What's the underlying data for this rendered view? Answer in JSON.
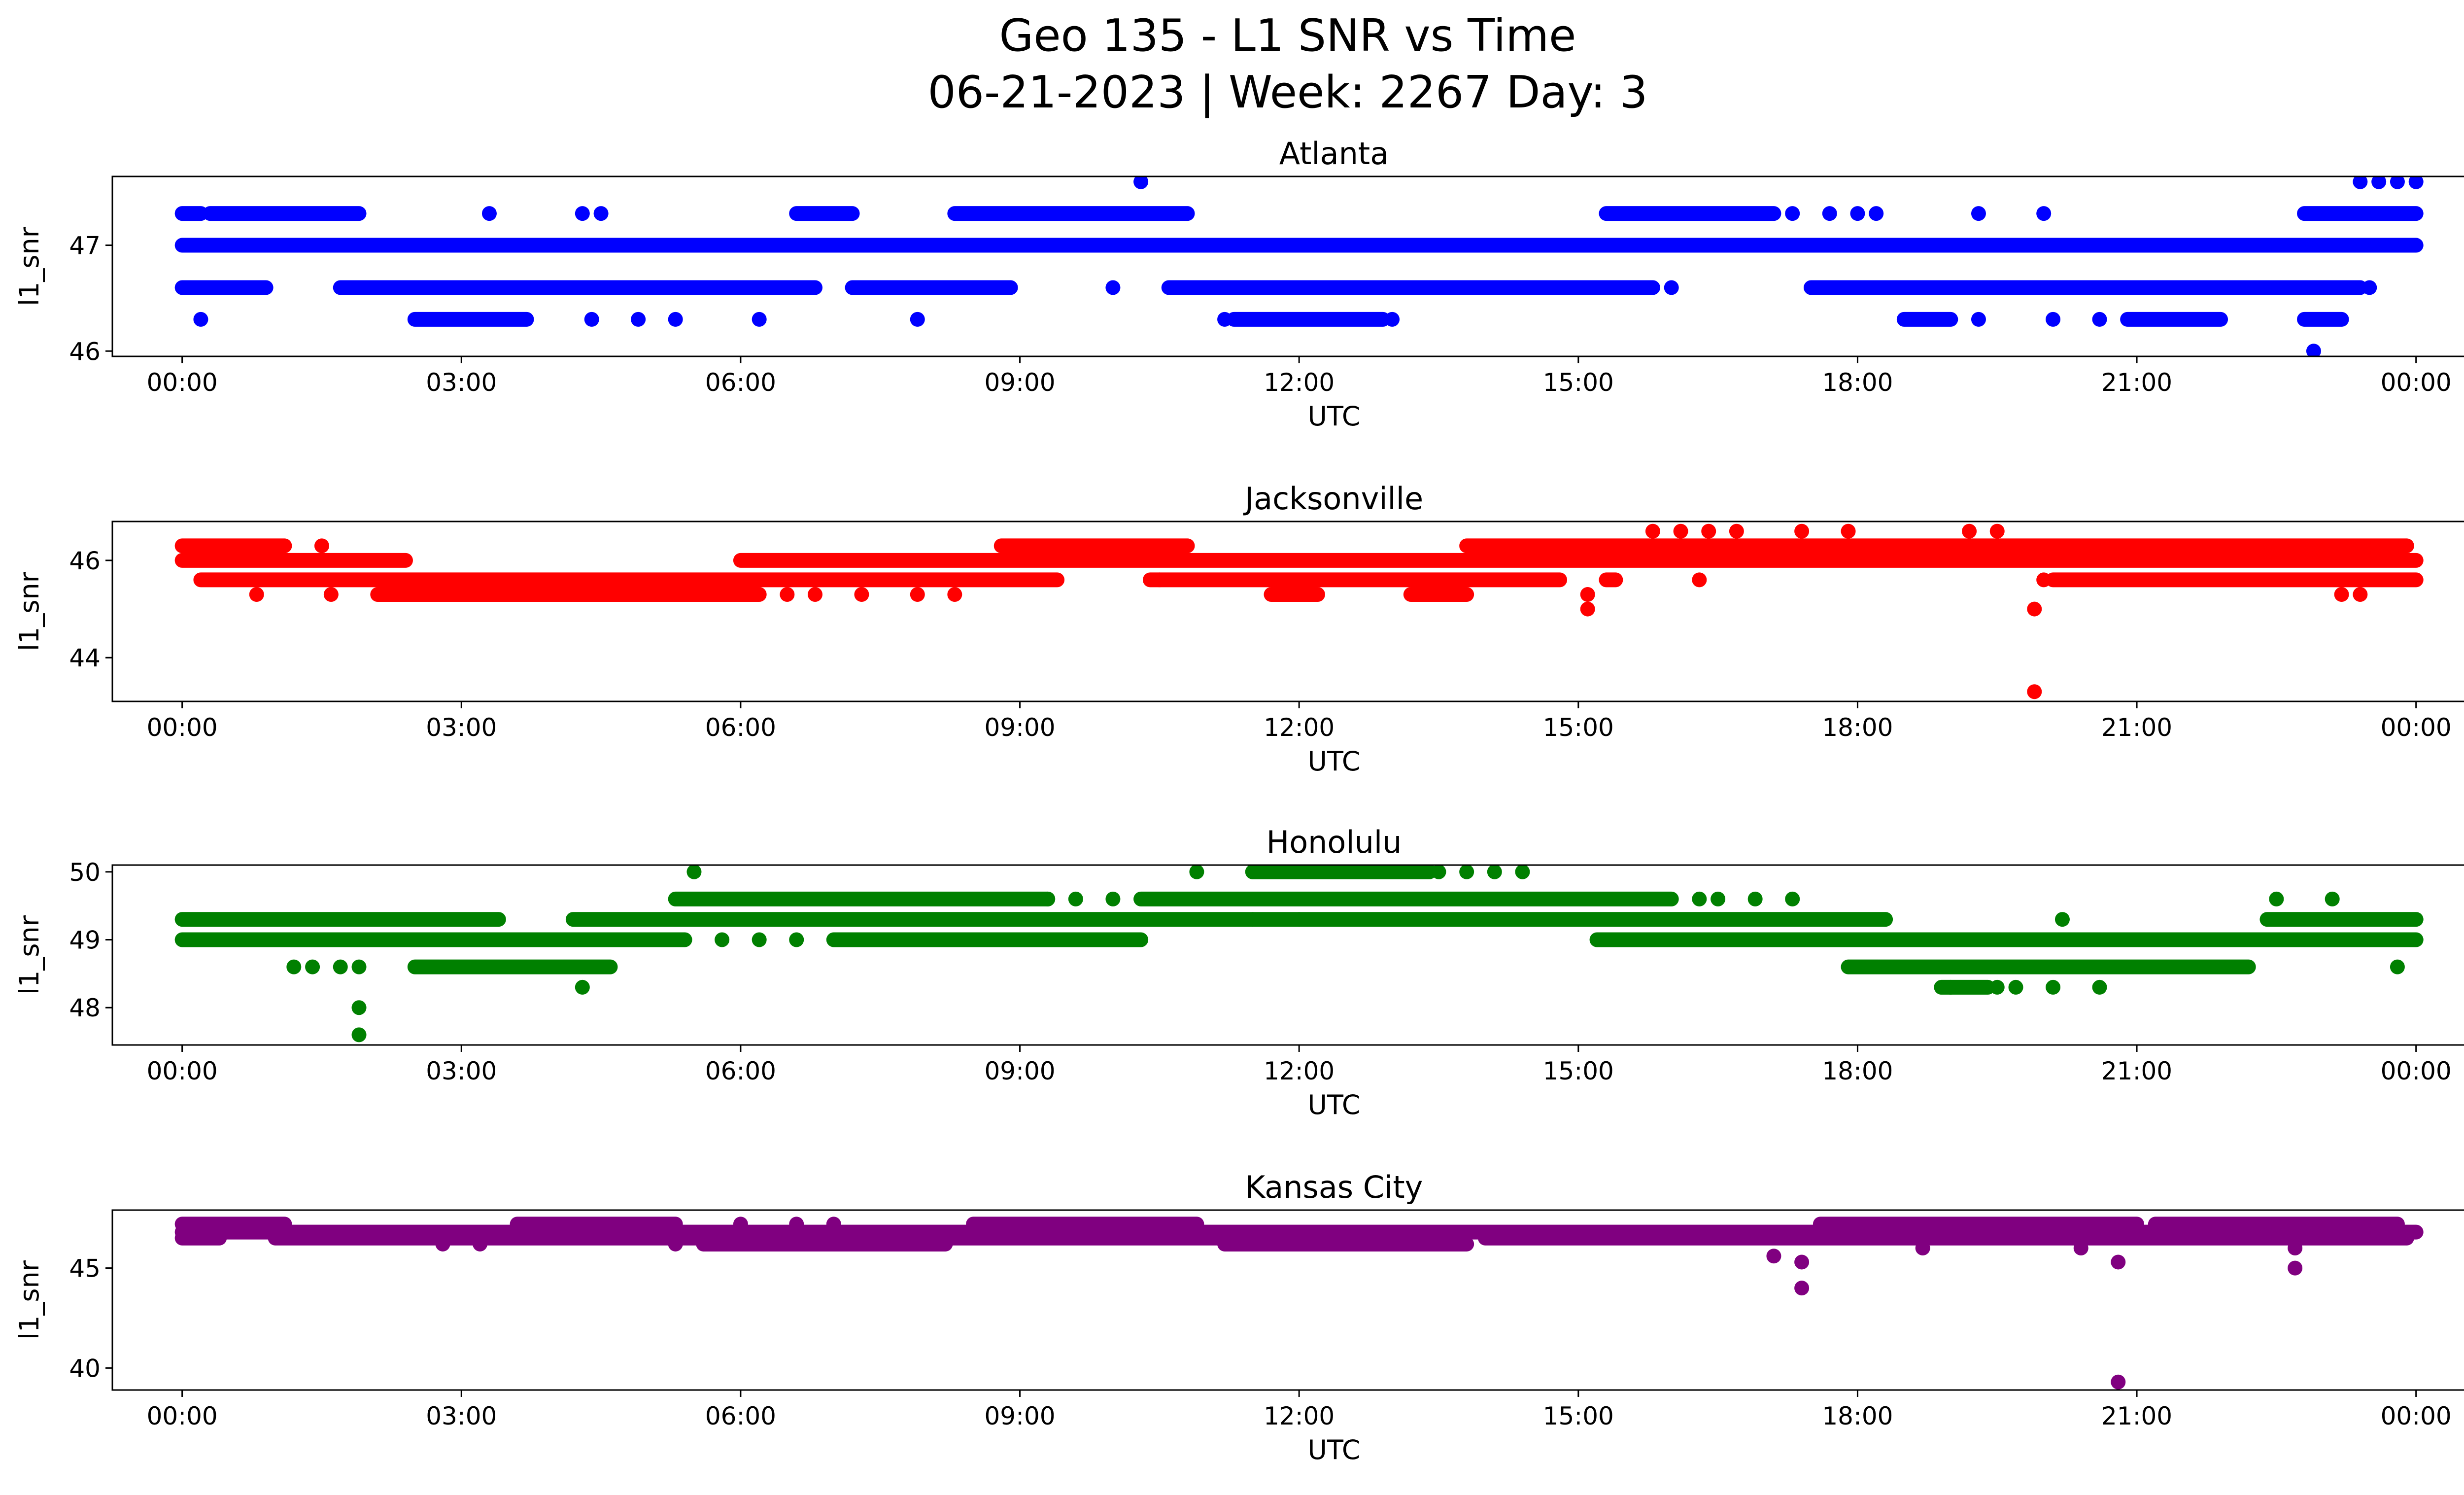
{
  "figure": {
    "title_line1": "Geo 135 - L1 SNR vs Time",
    "title_line2": "06-21-2023 | Week: 2267 Day: 3"
  },
  "chart_data": [
    {
      "type": "scatter",
      "title": "Atlanta",
      "color": "#0000ff",
      "xlabel": "UTC",
      "ylabel": "l1_snr",
      "xlim_hours": [
        -0.75,
        25.5
      ],
      "ylim": [
        45.95,
        47.65
      ],
      "x_ticks": [
        "00:00",
        "03:00",
        "06:00",
        "09:00",
        "12:00",
        "15:00",
        "18:00",
        "21:00",
        "00:00"
      ],
      "y_ticks": [
        46,
        47
      ],
      "levels": [
        {
          "y": 47.0,
          "segments": [
            [
              0.0,
              24.0
            ]
          ]
        },
        {
          "y": 46.6,
          "segments": [
            [
              0.0,
              0.9
            ],
            [
              1.7,
              6.8
            ],
            [
              7.2,
              8.9
            ],
            [
              10.6,
              15.8
            ],
            [
              17.5,
              23.4
            ]
          ]
        },
        {
          "y": 47.3,
          "segments": [
            [
              0.0,
              0.2
            ],
            [
              0.3,
              1.9
            ],
            [
              6.6,
              7.2
            ],
            [
              8.3,
              10.8
            ],
            [
              15.3,
              17.1
            ],
            [
              22.8,
              24.0
            ]
          ]
        },
        {
          "y": 46.3,
          "segments": [
            [
              2.5,
              3.7
            ],
            [
              11.3,
              12.9
            ],
            [
              18.5,
              19.0
            ],
            [
              20.9,
              21.9
            ],
            [
              22.8,
              23.2
            ]
          ]
        }
      ],
      "points": [
        [
          0.2,
          46.3
        ],
        [
          3.3,
          47.3
        ],
        [
          4.3,
          47.3
        ],
        [
          4.5,
          47.3
        ],
        [
          4.4,
          46.3
        ],
        [
          4.9,
          46.3
        ],
        [
          5.3,
          46.3
        ],
        [
          6.2,
          46.3
        ],
        [
          7.9,
          46.3
        ],
        [
          10.0,
          46.6
        ],
        [
          10.3,
          47.6
        ],
        [
          11.2,
          46.3
        ],
        [
          13.0,
          46.3
        ],
        [
          16.0,
          46.6
        ],
        [
          17.3,
          47.3
        ],
        [
          17.7,
          47.3
        ],
        [
          18.0,
          47.3
        ],
        [
          18.2,
          47.3
        ],
        [
          19.3,
          47.3
        ],
        [
          19.3,
          46.3
        ],
        [
          20.0,
          47.3
        ],
        [
          20.1,
          46.3
        ],
        [
          20.6,
          46.3
        ],
        [
          23.5,
          46.6
        ],
        [
          22.9,
          46.0
        ],
        [
          23.4,
          47.6
        ],
        [
          23.6,
          47.6
        ],
        [
          23.8,
          47.6
        ],
        [
          24.0,
          47.6
        ]
      ]
    },
    {
      "type": "scatter",
      "title": "Jacksonville",
      "color": "#ff0000",
      "xlabel": "UTC",
      "ylabel": "l1_snr",
      "xlim_hours": [
        -0.75,
        25.5
      ],
      "ylim": [
        43.1,
        46.8
      ],
      "x_ticks": [
        "00:00",
        "03:00",
        "06:00",
        "09:00",
        "12:00",
        "15:00",
        "18:00",
        "21:00",
        "00:00"
      ],
      "y_ticks": [
        44,
        46
      ],
      "levels": [
        {
          "y": 46.0,
          "segments": [
            [
              0.0,
              2.4
            ],
            [
              6.0,
              24.0
            ]
          ]
        },
        {
          "y": 45.6,
          "segments": [
            [
              0.2,
              9.4
            ],
            [
              10.4,
              14.8
            ],
            [
              15.3,
              15.4
            ],
            [
              20.1,
              24.0
            ]
          ]
        },
        {
          "y": 46.3,
          "segments": [
            [
              0.0,
              1.1
            ],
            [
              8.8,
              10.8
            ],
            [
              13.8,
              23.9
            ]
          ]
        },
        {
          "y": 45.3,
          "segments": [
            [
              2.1,
              6.2
            ],
            [
              11.7,
              12.2
            ],
            [
              13.2,
              13.8
            ]
          ]
        }
      ],
      "points": [
        [
          1.5,
          46.3
        ],
        [
          0.8,
          45.3
        ],
        [
          1.6,
          45.3
        ],
        [
          6.5,
          45.3
        ],
        [
          6.8,
          45.3
        ],
        [
          7.3,
          45.3
        ],
        [
          7.9,
          45.3
        ],
        [
          8.3,
          45.3
        ],
        [
          10.5,
          45.6
        ],
        [
          15.1,
          45.3
        ],
        [
          15.1,
          45.0
        ],
        [
          16.3,
          45.6
        ],
        [
          15.8,
          46.6
        ],
        [
          16.1,
          46.6
        ],
        [
          16.4,
          46.6
        ],
        [
          16.7,
          46.6
        ],
        [
          17.4,
          46.6
        ],
        [
          17.9,
          46.6
        ],
        [
          19.2,
          46.6
        ],
        [
          19.5,
          46.6
        ],
        [
          19.9,
          45.0
        ],
        [
          19.9,
          43.3
        ],
        [
          20.0,
          45.6
        ],
        [
          23.2,
          45.3
        ],
        [
          23.4,
          45.3
        ]
      ]
    },
    {
      "type": "scatter",
      "title": "Honolulu",
      "color": "#008000",
      "xlabel": "UTC",
      "ylabel": "l1_snr",
      "xlim_hours": [
        -0.75,
        25.5
      ],
      "ylim": [
        47.45,
        50.1
      ],
      "x_ticks": [
        "00:00",
        "03:00",
        "06:00",
        "09:00",
        "12:00",
        "15:00",
        "18:00",
        "21:00",
        "00:00"
      ],
      "y_ticks": [
        48,
        49,
        50
      ],
      "levels": [
        {
          "y": 49.3,
          "segments": [
            [
              0.0,
              3.4
            ],
            [
              4.2,
              18.3
            ],
            [
              22.4,
              24.0
            ]
          ]
        },
        {
          "y": 49.0,
          "segments": [
            [
              0.0,
              5.4
            ],
            [
              7.0,
              10.3
            ],
            [
              15.2,
              24.0
            ]
          ]
        },
        {
          "y": 49.6,
          "segments": [
            [
              5.3,
              9.3
            ],
            [
              10.3,
              16.0
            ]
          ]
        },
        {
          "y": 48.6,
          "segments": [
            [
              2.5,
              4.6
            ],
            [
              17.9,
              22.2
            ]
          ]
        },
        {
          "y": 50.0,
          "segments": [
            [
              11.5,
              13.4
            ]
          ]
        },
        {
          "y": 48.3,
          "segments": [
            [
              18.9,
              19.4
            ]
          ]
        }
      ],
      "points": [
        [
          1.2,
          48.6
        ],
        [
          1.4,
          48.6
        ],
        [
          1.7,
          48.6
        ],
        [
          1.9,
          48.6
        ],
        [
          1.9,
          48.0
        ],
        [
          1.9,
          47.6
        ],
        [
          4.3,
          48.3
        ],
        [
          5.5,
          50.0
        ],
        [
          5.8,
          49.0
        ],
        [
          6.2,
          49.0
        ],
        [
          6.6,
          49.0
        ],
        [
          7.1,
          49.0
        ],
        [
          9.3,
          49.6
        ],
        [
          9.6,
          49.6
        ],
        [
          10.0,
          49.6
        ],
        [
          10.9,
          50.0
        ],
        [
          11.5,
          49.3
        ],
        [
          12.0,
          49.3
        ],
        [
          13.5,
          50.0
        ],
        [
          13.8,
          50.0
        ],
        [
          14.1,
          50.0
        ],
        [
          14.4,
          50.0
        ],
        [
          16.3,
          49.6
        ],
        [
          16.5,
          49.6
        ],
        [
          16.9,
          49.6
        ],
        [
          17.3,
          49.6
        ],
        [
          19.0,
          48.3
        ],
        [
          19.5,
          48.3
        ],
        [
          19.7,
          48.3
        ],
        [
          20.1,
          48.3
        ],
        [
          20.6,
          48.3
        ],
        [
          20.2,
          49.3
        ],
        [
          22.5,
          49.6
        ],
        [
          23.1,
          49.6
        ],
        [
          23.8,
          48.6
        ]
      ]
    },
    {
      "type": "scatter",
      "title": "Kansas City",
      "color": "#800080",
      "xlabel": "UTC",
      "ylabel": "l1_snr",
      "xlim_hours": [
        -0.75,
        25.5
      ],
      "ylim": [
        38.9,
        47.9
      ],
      "x_ticks": [
        "00:00",
        "03:00",
        "06:00",
        "09:00",
        "12:00",
        "15:00",
        "18:00",
        "21:00",
        "00:00"
      ],
      "y_ticks": [
        40,
        45
      ],
      "levels": [
        {
          "y": 46.8,
          "segments": [
            [
              0.0,
              24.0
            ]
          ]
        },
        {
          "y": 47.2,
          "segments": [
            [
              0.0,
              1.1
            ],
            [
              3.6,
              5.3
            ],
            [
              8.5,
              10.9
            ],
            [
              17.6,
              21.0
            ],
            [
              21.2,
              23.8
            ]
          ]
        },
        {
          "y": 46.5,
          "segments": [
            [
              0.0,
              0.4
            ],
            [
              1.0,
              11.2
            ],
            [
              14.0,
              23.9
            ]
          ]
        },
        {
          "y": 46.2,
          "segments": [
            [
              5.6,
              8.2
            ],
            [
              11.2,
              13.8
            ]
          ]
        }
      ],
      "points": [
        [
          6.0,
          47.2
        ],
        [
          6.6,
          47.2
        ],
        [
          7.0,
          47.2
        ],
        [
          2.8,
          46.2
        ],
        [
          3.2,
          46.2
        ],
        [
          5.3,
          46.2
        ],
        [
          17.1,
          45.6
        ],
        [
          17.4,
          45.3
        ],
        [
          17.4,
          44.0
        ],
        [
          18.7,
          46.0
        ],
        [
          20.4,
          46.0
        ],
        [
          20.8,
          45.3
        ],
        [
          20.8,
          39.3
        ],
        [
          22.7,
          46.0
        ],
        [
          22.7,
          45.0
        ]
      ]
    }
  ]
}
